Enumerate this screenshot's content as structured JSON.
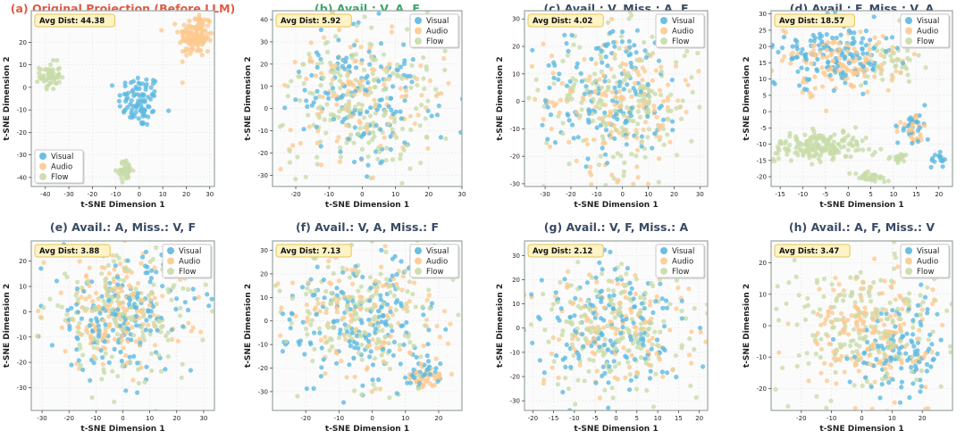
{
  "colors": {
    "visual": "#5bb8e0",
    "audio": "#fcc98e",
    "flow": "#c8dba8",
    "title_red": "#e05a44",
    "title_green": "#3aa46a",
    "title_dark": "#3a4a63",
    "badge_fill": "#fdf3c4",
    "badge_stroke": "#e6c65a",
    "frame": "#9aa5a0",
    "grid": "#e6e6e6"
  },
  "legend_labels": [
    "Visual",
    "Audio",
    "Flow"
  ],
  "chart_data": [
    {
      "id": "a",
      "type": "scatter",
      "title": "(a) Original Projection (Before LLM)",
      "title_color": "title_red",
      "badge": "Avg Dist: 44.38",
      "xlabel": "t-SNE Dimension 1",
      "ylabel": "t-SNE Dimension 2",
      "xlim": [
        -46,
        32
      ],
      "ylim": [
        -44,
        34
      ],
      "xticks": [
        -40,
        -30,
        -20,
        -10,
        0,
        10,
        20,
        30
      ],
      "yticks": [
        -40,
        -30,
        -20,
        -10,
        0,
        10,
        20
      ],
      "legend_position": "bottom-left",
      "clusters": [
        {
          "series": "visual",
          "cx": 0,
          "cy": -6,
          "sx": 4.5,
          "sy": 6,
          "n": 90
        },
        {
          "series": "audio",
          "cx": 24,
          "cy": 23,
          "sx": 3.6,
          "sy": 5,
          "n": 140
        },
        {
          "series": "flow",
          "cx": -38,
          "cy": 5,
          "sx": 2.2,
          "sy": 3,
          "n": 55
        },
        {
          "series": "flow",
          "cx": -6,
          "cy": -37,
          "sx": 1.6,
          "sy": 2.2,
          "n": 45
        }
      ]
    },
    {
      "id": "b",
      "type": "scatter",
      "title": "(b) Avail.: V, A, F",
      "title_color": "title_green",
      "badge": "Avg Dist: 5.92",
      "xlabel": "t-SNE Dimension 1",
      "ylabel": "t-SNE Dimension 2",
      "xlim": [
        -27,
        30
      ],
      "ylim": [
        -35,
        44
      ],
      "xticks": [
        -20,
        -10,
        0,
        10,
        20,
        30
      ],
      "yticks": [
        -30,
        -20,
        -10,
        0,
        10,
        20,
        30,
        40
      ],
      "legend_position": "top-right",
      "clusters": [
        {
          "series": "visual",
          "cx": 0,
          "cy": 4,
          "sx": 11,
          "sy": 17,
          "n": 150
        },
        {
          "series": "audio",
          "cx": 0,
          "cy": 4,
          "sx": 12,
          "sy": 17,
          "n": 130
        },
        {
          "series": "flow",
          "cx": 0,
          "cy": 4,
          "sx": 12,
          "sy": 17,
          "n": 200
        }
      ]
    },
    {
      "id": "c",
      "type": "scatter",
      "title": "(c) Avail.: V, Miss.: A, F",
      "title_color": "title_dark",
      "badge": "Avg Dist: 4.02",
      "xlabel": "t-SNE Dimension 1",
      "ylabel": "t-SNE Dimension 2",
      "xlim": [
        -38,
        33
      ],
      "ylim": [
        -31,
        33
      ],
      "xticks": [
        -30,
        -20,
        -10,
        0,
        10,
        20,
        30
      ],
      "yticks": [
        -30,
        -20,
        -10,
        0,
        10,
        20,
        30
      ],
      "legend_position": "top-right",
      "clusters": [
        {
          "series": "visual",
          "cx": -5,
          "cy": 4,
          "sx": 15,
          "sy": 13,
          "n": 150
        },
        {
          "series": "audio",
          "cx": 0,
          "cy": 0,
          "sx": 15,
          "sy": 13,
          "n": 150
        },
        {
          "series": "flow",
          "cx": 0,
          "cy": 0,
          "sx": 15,
          "sy": 13,
          "n": 200
        }
      ]
    },
    {
      "id": "d",
      "type": "scatter",
      "title": "(d) Avail.: F, Miss.: V, A",
      "title_color": "title_dark",
      "badge": "Avg Dist: 18.57",
      "xlabel": "t-SNE Dimension 1",
      "ylabel": "t-SNE Dimension 2",
      "xlim": [
        -17,
        23
      ],
      "ylim": [
        -23,
        31
      ],
      "xticks": [
        -15,
        -10,
        -5,
        0,
        5,
        10,
        15,
        20
      ],
      "yticks": [
        -20,
        -15,
        -10,
        -5,
        0,
        5,
        10,
        15,
        20,
        25,
        30
      ],
      "legend_position": "top-right",
      "clusters": [
        {
          "series": "visual",
          "cx": -3,
          "cy": 17,
          "sx": 6,
          "sy": 5,
          "n": 150
        },
        {
          "series": "audio",
          "cx": -2,
          "cy": 15,
          "sx": 7,
          "sy": 5,
          "n": 130
        },
        {
          "series": "visual",
          "cx": 14,
          "cy": -5,
          "sx": 1.6,
          "sy": 2.5,
          "n": 30
        },
        {
          "series": "audio",
          "cx": 14,
          "cy": -5,
          "sx": 1.6,
          "sy": 2.5,
          "n": 25
        },
        {
          "series": "visual",
          "cx": 20,
          "cy": -14,
          "sx": 1.4,
          "sy": 1.4,
          "n": 15
        },
        {
          "series": "flow",
          "cx": -6,
          "cy": -11,
          "sx": 5,
          "sy": 2.4,
          "n": 170
        },
        {
          "series": "flow",
          "cx": 5,
          "cy": -20,
          "sx": 2.2,
          "sy": 0.8,
          "n": 30
        },
        {
          "series": "flow",
          "cx": 11,
          "cy": -14,
          "sx": 1.5,
          "sy": 0.8,
          "n": 20
        },
        {
          "series": "flow",
          "cx": 9,
          "cy": 15,
          "sx": 4,
          "sy": 4,
          "n": 40
        }
      ]
    },
    {
      "id": "e",
      "type": "scatter",
      "title": "(e) Avail.: A, Miss.: V, F",
      "title_color": "title_dark",
      "badge": "Avg Dist: 3.88",
      "xlabel": "t-SNE Dimension 1",
      "ylabel": "t-SNE Dimension 2",
      "xlim": [
        -34,
        34
      ],
      "ylim": [
        -39,
        28
      ],
      "xticks": [
        -30,
        -20,
        -10,
        0,
        10,
        20,
        30
      ],
      "yticks": [
        -30,
        -20,
        -10,
        0,
        10,
        20
      ],
      "legend_position": "top-right",
      "clusters": [
        {
          "series": "visual",
          "cx": 0,
          "cy": -2,
          "sx": 14,
          "sy": 12,
          "n": 170
        },
        {
          "series": "audio",
          "cx": -3,
          "cy": 0,
          "sx": 13,
          "sy": 11,
          "n": 170
        },
        {
          "series": "flow",
          "cx": 0,
          "cy": -2,
          "sx": 14,
          "sy": 12,
          "n": 170
        }
      ]
    },
    {
      "id": "f",
      "type": "scatter",
      "title": "(f) Avail.: V, A, Miss.: F",
      "title_color": "title_dark",
      "badge": "Avg Dist: 7.13",
      "xlabel": "t-SNE Dimension 1",
      "ylabel": "t-SNE Dimension 2",
      "xlim": [
        -30,
        27
      ],
      "ylim": [
        -38,
        34
      ],
      "xticks": [
        -20,
        -10,
        0,
        10,
        20
      ],
      "yticks": [
        -30,
        -20,
        -10,
        0,
        10,
        20,
        30
      ],
      "legend_position": "top-right",
      "clusters": [
        {
          "series": "visual",
          "cx": -5,
          "cy": 0,
          "sx": 12,
          "sy": 15,
          "n": 170
        },
        {
          "series": "audio",
          "cx": -2,
          "cy": 2,
          "sx": 11,
          "sy": 14,
          "n": 120
        },
        {
          "series": "flow",
          "cx": -2,
          "cy": 2,
          "sx": 12,
          "sy": 15,
          "n": 180
        },
        {
          "series": "audio",
          "cx": 16,
          "cy": -24,
          "sx": 3,
          "sy": 3,
          "n": 40
        },
        {
          "series": "visual",
          "cx": 15,
          "cy": -22,
          "sx": 3,
          "sy": 3,
          "n": 25
        }
      ]
    },
    {
      "id": "g",
      "type": "scatter",
      "title": "(g) Avail.: V, F, Miss.: A",
      "title_color": "title_dark",
      "badge": "Avg Dist: 2.12",
      "xlabel": "t-SNE Dimension 1",
      "ylabel": "t-SNE Dimension 2",
      "xlim": [
        -22,
        22
      ],
      "ylim": [
        -34,
        36
      ],
      "xticks": [
        -20,
        -15,
        -10,
        -5,
        0,
        5,
        10,
        15,
        20
      ],
      "yticks": [
        -30,
        -20,
        -10,
        0,
        10,
        20,
        30
      ],
      "legend_position": "top-right",
      "clusters": [
        {
          "series": "visual",
          "cx": 0,
          "cy": 0,
          "sx": 9,
          "sy": 13,
          "n": 160
        },
        {
          "series": "audio",
          "cx": 0,
          "cy": 0,
          "sx": 9,
          "sy": 13,
          "n": 120
        },
        {
          "series": "flow",
          "cx": 0,
          "cy": 0,
          "sx": 9,
          "sy": 13,
          "n": 190
        }
      ]
    },
    {
      "id": "h",
      "type": "scatter",
      "title": "(h) Avail.: A, F, Miss.: V",
      "title_color": "title_dark",
      "badge": "Avg Dist: 3.47",
      "xlabel": "t-SNE Dimension 1",
      "ylabel": "t-SNE Dimension 2",
      "xlim": [
        -30,
        30
      ],
      "ylim": [
        -27,
        27
      ],
      "xticks": [
        -20,
        -10,
        0,
        10,
        20
      ],
      "yticks": [
        -20,
        -10,
        0,
        10,
        20
      ],
      "legend_position": "top-right",
      "clusters": [
        {
          "series": "visual",
          "cx": 14,
          "cy": -7,
          "sx": 8,
          "sy": 8,
          "n": 110
        },
        {
          "series": "audio",
          "cx": 2,
          "cy": -2,
          "sx": 10,
          "sy": 9,
          "n": 180
        },
        {
          "series": "flow",
          "cx": 0,
          "cy": 0,
          "sx": 14,
          "sy": 11,
          "n": 200
        }
      ]
    }
  ]
}
